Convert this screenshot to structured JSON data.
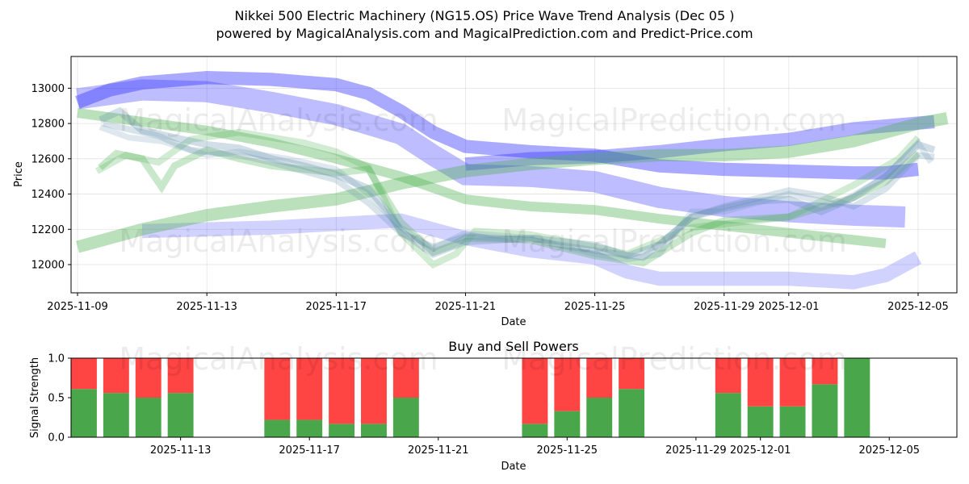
{
  "title_line1": "Nikkei 500 Electric Machinery (NG15.OS) Price Wave Trend Analysis (Dec 05 )",
  "title_line2": "powered by MagicalAnalysis.com and MagicalPrediction.com and Predict-Price.com",
  "watermarks": [
    "MagicalAnalysis.com",
    "MagicalPrediction.com"
  ],
  "colors": {
    "green": "#4caf50",
    "blue": "#3333ff",
    "slate": "#5a8aa8",
    "buy": "#4aa64a",
    "sell": "#ff4444"
  },
  "chart_data": [
    {
      "type": "area",
      "name": "price-wave",
      "xlabel": "Date",
      "ylabel": "Price",
      "x_range_days": [
        -0.2,
        27.2
      ],
      "ylim": [
        11840,
        13180
      ],
      "grid": true,
      "x_ticks": [
        {
          "day": 0,
          "label": "2025-11-09"
        },
        {
          "day": 4,
          "label": "2025-11-13"
        },
        {
          "day": 8,
          "label": "2025-11-17"
        },
        {
          "day": 12,
          "label": "2025-11-21"
        },
        {
          "day": 16,
          "label": "2025-11-25"
        },
        {
          "day": 20,
          "label": "2025-11-29"
        },
        {
          "day": 22,
          "label": "2025-12-01"
        },
        {
          "day": 26,
          "label": "2025-12-05"
        }
      ],
      "y_ticks": [
        12000,
        12200,
        12400,
        12600,
        12800,
        13000
      ],
      "bands": [
        {
          "color": "blue",
          "opacity": 0.32,
          "width": 120,
          "points": [
            [
              0,
              12940
            ],
            [
              2,
              12990
            ],
            [
              4,
              12980
            ],
            [
              6,
              12920
            ],
            [
              8,
              12850
            ],
            [
              10,
              12740
            ],
            [
              11,
              12620
            ],
            [
              12,
              12510
            ],
            [
              14,
              12500
            ],
            [
              16,
              12470
            ],
            [
              18,
              12380
            ],
            [
              20,
              12330
            ],
            [
              22,
              12300
            ],
            [
              24,
              12280
            ],
            [
              25.6,
              12270
            ]
          ]
        },
        {
          "color": "blue",
          "opacity": 0.42,
          "width": 75,
          "points": [
            [
              0,
              12920
            ],
            [
              1,
              12990
            ],
            [
              2,
              13030
            ],
            [
              4,
              13060
            ],
            [
              6,
              13050
            ],
            [
              8,
              13020
            ],
            [
              9,
              12970
            ],
            [
              10,
              12870
            ],
            [
              11,
              12750
            ],
            [
              12,
              12670
            ],
            [
              14,
              12640
            ],
            [
              16,
              12620
            ],
            [
              18,
              12560
            ],
            [
              20,
              12540
            ],
            [
              22,
              12530
            ],
            [
              24,
              12520
            ],
            [
              25,
              12520
            ],
            [
              26,
              12540
            ]
          ]
        },
        {
          "color": "blue",
          "opacity": 0.22,
          "width": 80,
          "points": [
            [
              2,
              12190
            ],
            [
              4,
              12200
            ],
            [
              6,
              12210
            ],
            [
              8,
              12230
            ],
            [
              10,
              12250
            ],
            [
              12,
              12150
            ],
            [
              14,
              12080
            ],
            [
              16,
              12040
            ],
            [
              17,
              11960
            ],
            [
              18,
              11920
            ],
            [
              20,
              11920
            ],
            [
              22,
              11920
            ],
            [
              24,
              11900
            ],
            [
              25,
              11940
            ],
            [
              26,
              12040
            ]
          ]
        },
        {
          "color": "blue",
          "opacity": 0.38,
          "width": 75,
          "points": [
            [
              12,
              12570
            ],
            [
              14,
              12600
            ],
            [
              16,
              12610
            ],
            [
              18,
              12640
            ],
            [
              20,
              12680
            ],
            [
              22,
              12710
            ],
            [
              24,
              12770
            ],
            [
              26.5,
              12810
            ]
          ]
        },
        {
          "color": "green",
          "opacity": 0.38,
          "width": 70,
          "points": [
            [
              0,
              12100
            ],
            [
              2,
              12200
            ],
            [
              4,
              12280
            ],
            [
              6,
              12330
            ],
            [
              8,
              12370
            ],
            [
              10,
              12460
            ],
            [
              12,
              12530
            ],
            [
              14,
              12570
            ],
            [
              16,
              12600
            ],
            [
              18,
              12620
            ],
            [
              20,
              12620
            ],
            [
              22,
              12640
            ],
            [
              24,
              12700
            ],
            [
              26,
              12800
            ],
            [
              26.9,
              12830
            ]
          ]
        },
        {
          "color": "green",
          "opacity": 0.38,
          "width": 55,
          "points": [
            [
              0,
              12860
            ],
            [
              2,
              12810
            ],
            [
              4,
              12760
            ],
            [
              6,
              12690
            ],
            [
              8,
              12600
            ],
            [
              10,
              12500
            ],
            [
              12,
              12370
            ],
            [
              14,
              12330
            ],
            [
              16,
              12310
            ],
            [
              18,
              12260
            ],
            [
              20,
              12220
            ],
            [
              22,
              12180
            ],
            [
              24,
              12140
            ],
            [
              25,
              12120
            ]
          ]
        },
        {
          "color": "green",
          "opacity": 0.3,
          "width": 40,
          "points": [
            [
              0.7,
              12550
            ],
            [
              1.2,
              12630
            ],
            [
              2,
              12600
            ],
            [
              2.6,
              12440
            ],
            [
              3,
              12560
            ],
            [
              4,
              12650
            ],
            [
              5,
              12600
            ],
            [
              6,
              12560
            ],
            [
              8,
              12520
            ],
            [
              9,
              12540
            ],
            [
              10,
              12240
            ],
            [
              11,
              12070
            ],
            [
              11.6,
              12110
            ],
            [
              12,
              12150
            ],
            [
              14,
              12140
            ],
            [
              16,
              12050
            ],
            [
              17.5,
              12010
            ],
            [
              19,
              12180
            ],
            [
              20,
              12250
            ],
            [
              22,
              12270
            ],
            [
              24,
              12380
            ],
            [
              25,
              12470
            ],
            [
              26,
              12630
            ]
          ]
        },
        {
          "color": "green",
          "opacity": 0.25,
          "width": 38,
          "points": [
            [
              0.6,
              12530
            ],
            [
              1.5,
              12620
            ],
            [
              2.5,
              12580
            ],
            [
              3.5,
              12710
            ],
            [
              5,
              12750
            ],
            [
              7,
              12690
            ],
            [
              8,
              12640
            ],
            [
              9,
              12550
            ],
            [
              10,
              12180
            ],
            [
              11,
              12000
            ],
            [
              11.7,
              12060
            ],
            [
              12.3,
              12190
            ],
            [
              14,
              12170
            ],
            [
              16,
              12100
            ],
            [
              17,
              12060
            ],
            [
              19,
              12210
            ],
            [
              22,
              12270
            ],
            [
              24,
              12450
            ],
            [
              25.4,
              12600
            ],
            [
              26,
              12720
            ]
          ]
        },
        {
          "color": "slate",
          "opacity": 0.28,
          "width": 40,
          "points": [
            [
              0.7,
              12820
            ],
            [
              1.3,
              12870
            ],
            [
              2,
              12760
            ],
            [
              3,
              12720
            ],
            [
              4,
              12680
            ],
            [
              5,
              12660
            ],
            [
              6,
              12600
            ],
            [
              7,
              12560
            ],
            [
              8,
              12510
            ],
            [
              9,
              12430
            ],
            [
              9.6,
              12300
            ],
            [
              10,
              12190
            ],
            [
              11,
              12060
            ],
            [
              12,
              12130
            ],
            [
              14,
              12150
            ],
            [
              16,
              12110
            ],
            [
              17,
              12050
            ],
            [
              18,
              12110
            ],
            [
              19,
              12270
            ],
            [
              20,
              12320
            ],
            [
              21,
              12360
            ],
            [
              22,
              12370
            ],
            [
              23,
              12300
            ],
            [
              24,
              12380
            ],
            [
              25,
              12500
            ],
            [
              26,
              12680
            ],
            [
              26.5,
              12650
            ]
          ]
        },
        {
          "color": "slate",
          "opacity": 0.24,
          "width": 36,
          "points": [
            [
              0.8,
              12800
            ],
            [
              1.5,
              12770
            ],
            [
              2.5,
              12730
            ],
            [
              3.5,
              12650
            ],
            [
              5,
              12620
            ],
            [
              6,
              12580
            ],
            [
              7,
              12530
            ],
            [
              8,
              12480
            ],
            [
              9,
              12350
            ],
            [
              10,
              12180
            ],
            [
              11,
              12100
            ],
            [
              12,
              12160
            ],
            [
              14,
              12140
            ],
            [
              16,
              12080
            ],
            [
              17.5,
              12040
            ],
            [
              19,
              12270
            ],
            [
              20,
              12330
            ],
            [
              22,
              12420
            ],
            [
              23,
              12390
            ],
            [
              24,
              12330
            ],
            [
              25,
              12430
            ],
            [
              26,
              12620
            ],
            [
              26.5,
              12610
            ]
          ]
        },
        {
          "color": "slate",
          "opacity": 0.2,
          "width": 34,
          "points": [
            [
              0.7,
              12780
            ],
            [
              1.6,
              12720
            ],
            [
              2.6,
              12700
            ],
            [
              4,
              12620
            ],
            [
              5,
              12640
            ],
            [
              6.5,
              12600
            ],
            [
              8,
              12540
            ],
            [
              9,
              12400
            ],
            [
              10,
              12210
            ],
            [
              11,
              12090
            ],
            [
              12,
              12180
            ],
            [
              14,
              12150
            ],
            [
              16,
              12060
            ],
            [
              17,
              12030
            ],
            [
              18,
              12060
            ],
            [
              19,
              12300
            ],
            [
              20,
              12300
            ],
            [
              22,
              12400
            ],
            [
              23.5,
              12340
            ],
            [
              25,
              12500
            ],
            [
              26,
              12690
            ],
            [
              26.4,
              12580
            ]
          ]
        }
      ]
    },
    {
      "type": "bar",
      "name": "buy-sell-powers",
      "title": "Buy and Sell Powers",
      "xlabel": "Date",
      "ylabel": "Signal Strength",
      "ylim": [
        0,
        1
      ],
      "x_range_days": [
        -0.4,
        27.1
      ],
      "y_ticks": [
        "0.0",
        "0.5",
        "1.0"
      ],
      "x_ticks": [
        {
          "day": 3,
          "label": "2025-11-13"
        },
        {
          "day": 7,
          "label": "2025-11-17"
        },
        {
          "day": 11,
          "label": "2025-11-21"
        },
        {
          "day": 15,
          "label": "2025-11-25"
        },
        {
          "day": 19,
          "label": "2025-11-29"
        },
        {
          "day": 21,
          "label": "2025-12-01"
        },
        {
          "day": 25,
          "label": "2025-12-05"
        }
      ],
      "series": [
        {
          "name": "Buy",
          "color": "buy"
        },
        {
          "name": "Sell",
          "color": "sell"
        }
      ],
      "bars": [
        {
          "day": 0,
          "buy": 0.61
        },
        {
          "day": 1,
          "buy": 0.56
        },
        {
          "day": 2,
          "buy": 0.5
        },
        {
          "day": 3,
          "buy": 0.56
        },
        {
          "day": 6,
          "buy": 0.22
        },
        {
          "day": 7,
          "buy": 0.22
        },
        {
          "day": 8,
          "buy": 0.17
        },
        {
          "day": 9,
          "buy": 0.17
        },
        {
          "day": 10,
          "buy": 0.5
        },
        {
          "day": 14,
          "buy": 0.17
        },
        {
          "day": 15,
          "buy": 0.33
        },
        {
          "day": 16,
          "buy": 0.5
        },
        {
          "day": 17,
          "buy": 0.61
        },
        {
          "day": 20,
          "buy": 0.56
        },
        {
          "day": 21,
          "buy": 0.39
        },
        {
          "day": 22,
          "buy": 0.39
        },
        {
          "day": 23,
          "buy": 0.67
        },
        {
          "day": 24,
          "buy": 1.0
        }
      ]
    }
  ]
}
